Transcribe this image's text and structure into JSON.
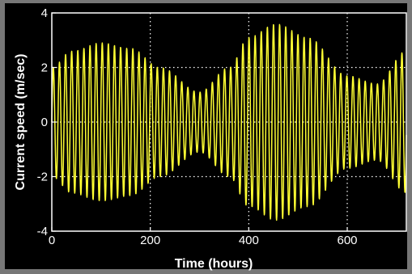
{
  "chart_data": {
    "type": "line",
    "title": "",
    "xlabel": "Time (hours)",
    "ylabel": "Current speed (m/sec)",
    "xlim": [
      0,
      720
    ],
    "ylim": [
      -4,
      4
    ],
    "xticks": [
      0,
      200,
      400,
      600
    ],
    "yticks": [
      -4,
      -2,
      0,
      2,
      4
    ],
    "grid": true,
    "legend": "none",
    "series": [
      {
        "color": "#ffff33",
        "x": [
          0,
          40,
          100,
          160,
          220,
          300,
          360,
          400,
          455,
          520,
          600,
          660,
          720
        ],
        "y_envelope": [
          2.0,
          2.6,
          2.9,
          2.7,
          2.0,
          1.1,
          2.0,
          3.1,
          3.6,
          3.1,
          1.7,
          1.4,
          2.6
        ]
      }
    ],
    "colors": {
      "frame": "#777777",
      "plot_background": "#000000",
      "grid": "#ffffff",
      "text": "#ffffff",
      "signal": "#ffff33"
    }
  }
}
